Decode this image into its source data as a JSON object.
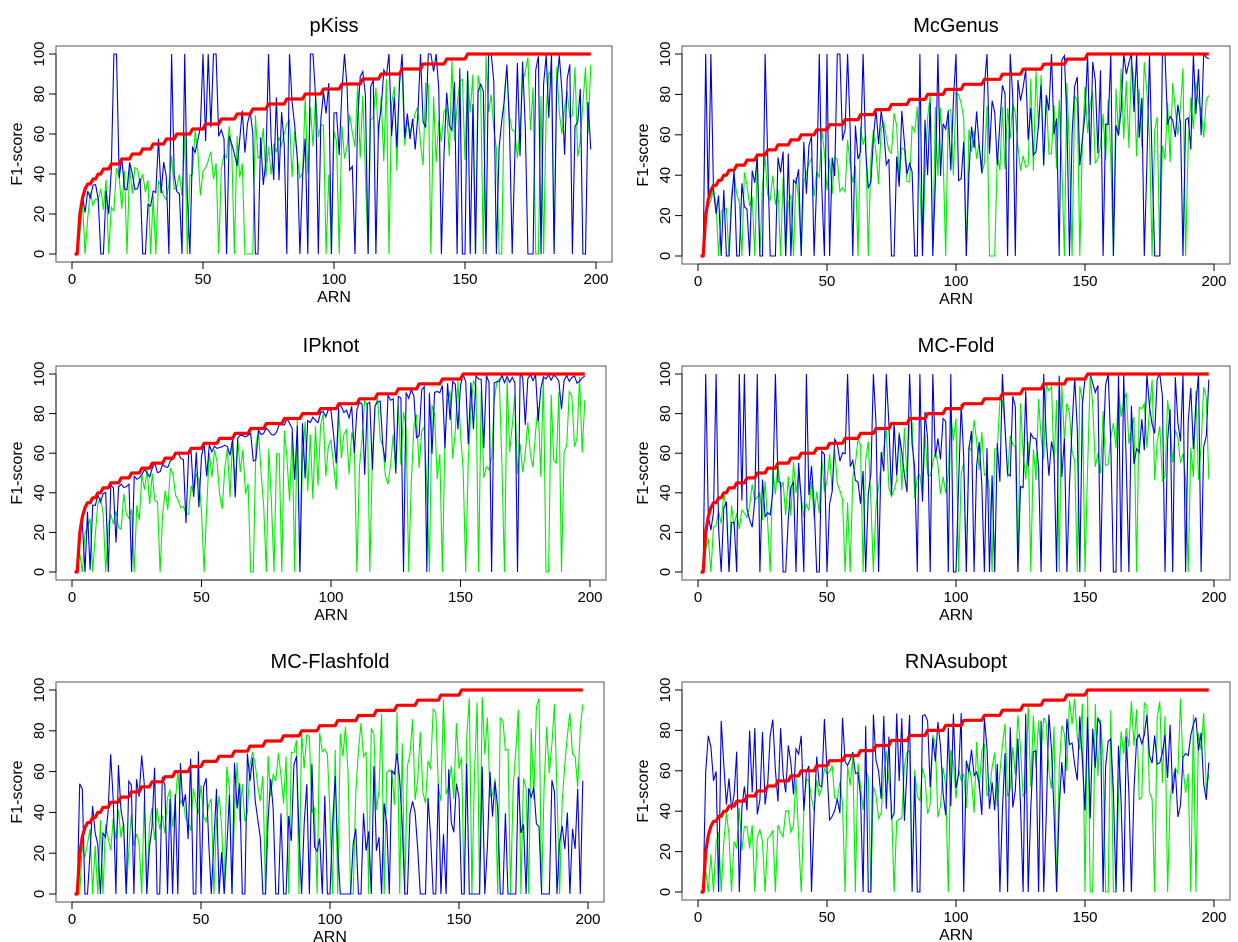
{
  "figure": {
    "colors": {
      "red": "#ff0000",
      "blue": "#0000dd",
      "green": "#00ee00",
      "axis": "#000000",
      "frame": "#555555"
    }
  },
  "chart_data": [
    {
      "type": "line",
      "title": "pKiss",
      "xlabel": "ARN",
      "ylabel": "F1-score",
      "xlim": [
        0,
        200
      ],
      "ylim": [
        0,
        100
      ],
      "xticks": [
        0,
        50,
        100,
        150,
        200
      ],
      "yticks": [
        0,
        20,
        40,
        60,
        80,
        100
      ],
      "grid": false,
      "legend": "none",
      "seed": 11,
      "series": [
        {
          "color": "#ff0000"
        },
        {
          "color": "#0000dd"
        },
        {
          "color": "#00ee00"
        }
      ]
    },
    {
      "type": "line",
      "title": "McGenus",
      "xlabel": "ARN",
      "ylabel": "F1-score",
      "xlim": [
        0,
        200
      ],
      "ylim": [
        0,
        100
      ],
      "xticks": [
        0,
        50,
        100,
        150,
        200
      ],
      "yticks": [
        0,
        20,
        40,
        60,
        80,
        100
      ],
      "grid": false,
      "legend": "none",
      "seed": 23,
      "series": [
        {
          "color": "#ff0000"
        },
        {
          "color": "#0000dd"
        },
        {
          "color": "#00ee00"
        }
      ]
    },
    {
      "type": "line",
      "title": "IPknot",
      "xlabel": "ARN",
      "ylabel": "F1-score",
      "xlim": [
        0,
        200
      ],
      "ylim": [
        0,
        100
      ],
      "xticks": [
        0,
        50,
        100,
        150,
        200
      ],
      "yticks": [
        0,
        20,
        40,
        60,
        80,
        100
      ],
      "grid": false,
      "legend": "none",
      "seed": 37,
      "series": [
        {
          "color": "#ff0000"
        },
        {
          "color": "#0000dd"
        },
        {
          "color": "#00ee00"
        }
      ]
    },
    {
      "type": "line",
      "title": "MC-Fold",
      "xlabel": "ARN",
      "ylabel": "F1-score",
      "xlim": [
        0,
        200
      ],
      "ylim": [
        0,
        100
      ],
      "xticks": [
        0,
        50,
        100,
        150,
        200
      ],
      "yticks": [
        0,
        20,
        40,
        60,
        80,
        100
      ],
      "grid": false,
      "legend": "none",
      "seed": 41,
      "series": [
        {
          "color": "#ff0000"
        },
        {
          "color": "#0000dd"
        },
        {
          "color": "#00ee00"
        }
      ]
    },
    {
      "type": "line",
      "title": "MC-Flashfold",
      "xlabel": "ARN",
      "ylabel": "F1-score",
      "xlim": [
        0,
        200
      ],
      "ylim": [
        0,
        100
      ],
      "xticks": [
        0,
        50,
        100,
        150,
        200
      ],
      "yticks": [
        0,
        20,
        40,
        60,
        80,
        100
      ],
      "grid": false,
      "legend": "none",
      "seed": 53,
      "series": [
        {
          "color": "#ff0000"
        },
        {
          "color": "#0000dd"
        },
        {
          "color": "#00ee00"
        }
      ]
    },
    {
      "type": "line",
      "title": "RNAsubopt",
      "xlabel": "ARN",
      "ylabel": "F1-score",
      "xlim": [
        0,
        200
      ],
      "ylim": [
        0,
        100
      ],
      "xticks": [
        0,
        50,
        100,
        150,
        200
      ],
      "yticks": [
        0,
        20,
        40,
        60,
        80,
        100
      ],
      "grid": false,
      "legend": "none",
      "seed": 67,
      "series": [
        {
          "color": "#ff0000"
        },
        {
          "color": "#0000dd"
        },
        {
          "color": "#00ee00"
        }
      ]
    }
  ]
}
